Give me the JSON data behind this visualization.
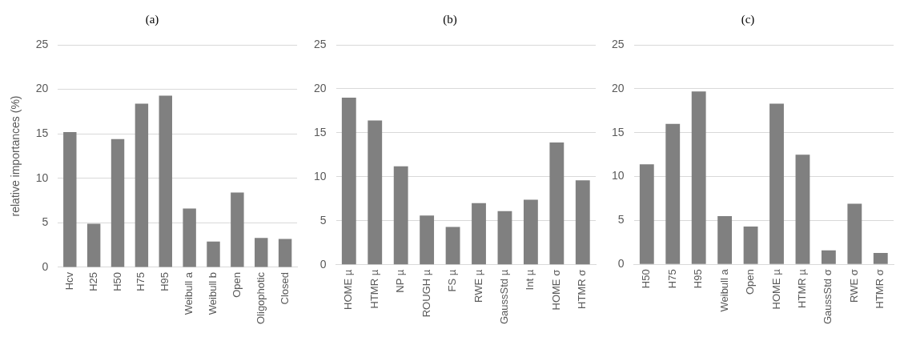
{
  "chart_data": [
    {
      "type": "bar",
      "title": "(a)",
      "ylabel": "relative importances (%)",
      "categories": [
        "Hcv",
        "H25",
        "H50",
        "H75",
        "H95",
        "Weibull a",
        "Weibull b",
        "Open",
        "Oligophotic",
        "Closed"
      ],
      "values": [
        15.2,
        4.9,
        14.4,
        18.4,
        19.3,
        6.6,
        2.9,
        8.4,
        3.3,
        3.2
      ],
      "color": "#808080",
      "ylim": [
        0,
        25
      ],
      "yticks": [
        0,
        5,
        10,
        15,
        20,
        25
      ],
      "grid": "y"
    },
    {
      "type": "bar",
      "title": "(b)",
      "categories": [
        "HOME µ",
        "HTMR µ",
        "NP µ",
        "ROUGH µ",
        "FS µ",
        "RWE µ",
        "GaussStd µ",
        "Int µ",
        "HOME σ",
        "HTMR σ"
      ],
      "values": [
        19.0,
        16.4,
        11.2,
        5.6,
        4.3,
        7.0,
        6.1,
        7.4,
        13.9,
        9.6
      ],
      "color": "#808080",
      "ylim": [
        0,
        25
      ],
      "yticks": [
        0,
        5,
        10,
        15,
        20,
        25
      ],
      "grid": "y"
    },
    {
      "type": "bar",
      "title": "(c)",
      "categories": [
        "H50",
        "H75",
        "H95",
        "Weibull a",
        "Open",
        "HOME µ",
        "HTMR µ",
        "GaussStd σ",
        "RWE σ",
        "HTMR σ"
      ],
      "values": [
        11.4,
        16.0,
        19.7,
        5.5,
        4.3,
        18.3,
        12.5,
        1.6,
        6.9,
        1.3
      ],
      "color": "#808080",
      "ylim": [
        0,
        25
      ],
      "yticks": [
        0,
        5,
        10,
        15,
        20,
        25
      ],
      "grid": "y"
    }
  ]
}
